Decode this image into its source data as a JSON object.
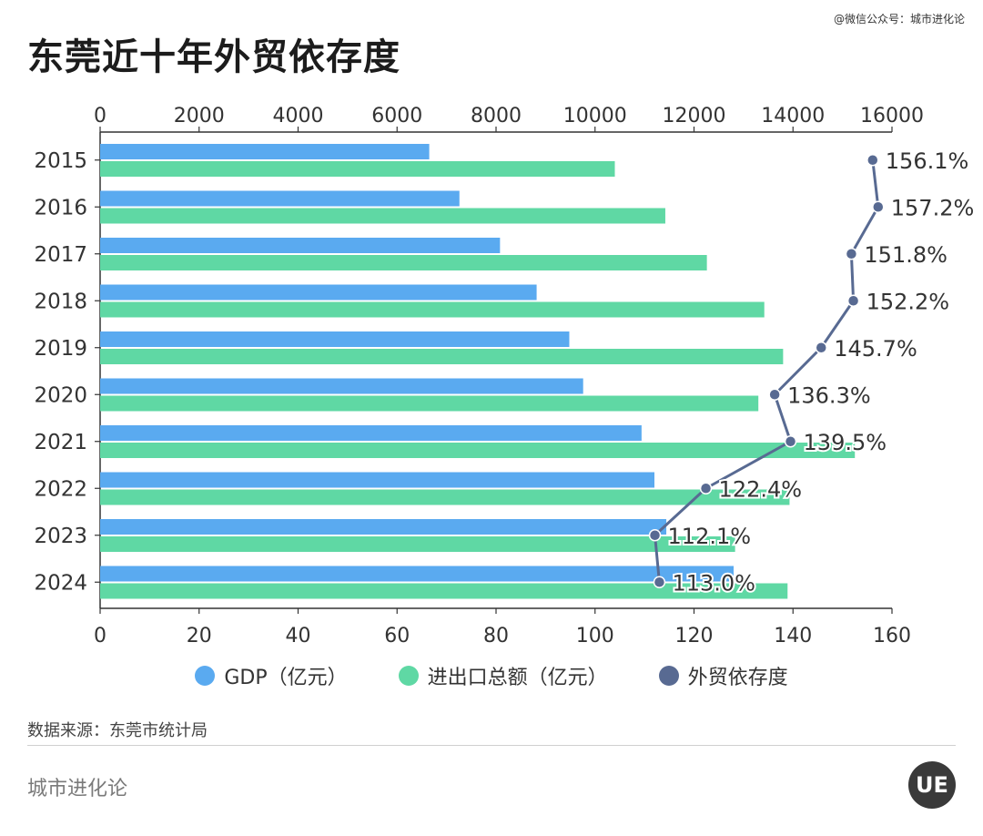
{
  "title": "东莞近十年外贸依存度",
  "credit": "@微信公众号：城市进化论",
  "source": "数据来源：东莞市统计局",
  "brand": "城市进化论",
  "logo_text": "UE",
  "colors": {
    "gdp": "#5aaaf0",
    "trade": "#5fd8a4",
    "ratio": "#586a92"
  },
  "chart_data": {
    "type": "bar",
    "orientation": "horizontal",
    "categories": [
      "2015",
      "2016",
      "2017",
      "2018",
      "2019",
      "2020",
      "2021",
      "2022",
      "2023",
      "2024"
    ],
    "series": [
      {
        "name": "GDP（亿元）",
        "axis": "top",
        "values": [
          6650,
          7260,
          8080,
          8820,
          9480,
          9760,
          10940,
          11200,
          11440,
          12800
        ]
      },
      {
        "name": "进出口总额（亿元）",
        "axis": "top",
        "values": [
          10400,
          11420,
          12260,
          13420,
          13800,
          13300,
          15250,
          13930,
          12830,
          13890
        ]
      },
      {
        "name": "外贸依存度",
        "axis": "bottom",
        "type": "line",
        "values": [
          156.1,
          157.2,
          151.8,
          152.2,
          145.7,
          136.3,
          139.5,
          122.4,
          112.1,
          113.0
        ]
      }
    ],
    "point_labels": [
      "156.1%",
      "157.2%",
      "151.8%",
      "152.2%",
      "145.7%",
      "136.3%",
      "139.5%",
      "122.4%",
      "112.1%",
      "113.0%"
    ],
    "top_axis": {
      "min": 0,
      "max": 16000,
      "ticks": [
        0,
        2000,
        4000,
        6000,
        8000,
        10000,
        12000,
        14000,
        16000
      ]
    },
    "bottom_axis": {
      "min": 0,
      "max": 160,
      "ticks": [
        0,
        20,
        40,
        60,
        80,
        100,
        120,
        140,
        160
      ]
    },
    "legend_position": "bottom"
  },
  "legend": [
    {
      "label": "GDP（亿元）",
      "color": "#5aaaf0"
    },
    {
      "label": "进出口总额（亿元）",
      "color": "#5fd8a4"
    },
    {
      "label": "外贸依存度",
      "color": "#586a92"
    }
  ]
}
